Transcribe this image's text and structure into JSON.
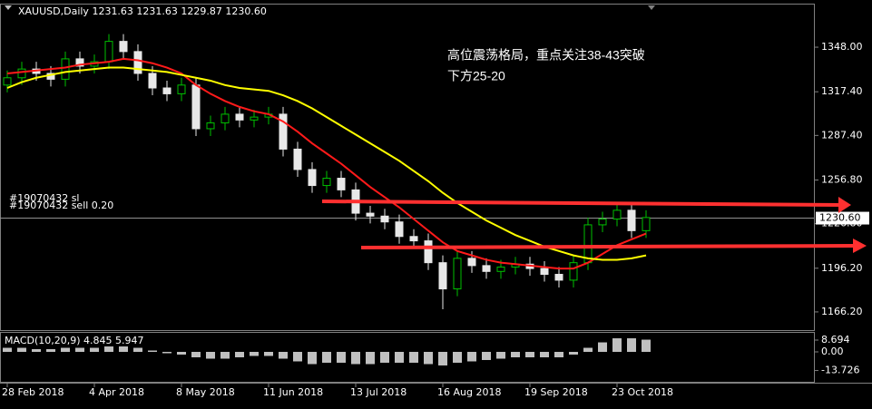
{
  "header": "XAUUSD,Daily  1231.63 1231.63 1229.87 1230.60",
  "chart_data": [
    {
      "type": "candlestick",
      "categories": [
        "28 Feb 2018",
        null,
        null,
        null,
        null,
        null,
        "4 Apr 2018",
        null,
        null,
        null,
        null,
        null,
        "8 May 2018",
        null,
        null,
        null,
        null,
        null,
        "11 Jun 2018",
        null,
        null,
        null,
        null,
        null,
        "13 Jul 2018",
        null,
        null,
        null,
        null,
        null,
        "16 Aug 2018",
        null,
        null,
        null,
        null,
        null,
        "19 Sep 2018",
        null,
        null,
        null,
        null,
        null,
        "23 Oct 2018",
        null,
        null
      ],
      "open": [
        1322,
        1327,
        1333,
        1330,
        1326,
        1340,
        1335,
        1338,
        1352,
        1345,
        1330,
        1320,
        1316,
        1322,
        1292,
        1296,
        1302,
        1298,
        1300,
        1302,
        1278,
        1264,
        1253,
        1258,
        1250,
        1234,
        1232,
        1228,
        1218,
        1215,
        1200,
        1182,
        1203,
        1198,
        1194,
        1197,
        1199,
        1196,
        1192,
        1188,
        1200,
        1226,
        1230,
        1236,
        1222
      ],
      "high": [
        1332,
        1338,
        1338,
        1335,
        1345,
        1345,
        1343,
        1357,
        1357,
        1350,
        1335,
        1325,
        1327,
        1327,
        1301,
        1307,
        1307,
        1305,
        1307,
        1307,
        1283,
        1269,
        1263,
        1263,
        1255,
        1239,
        1237,
        1233,
        1223,
        1220,
        1205,
        1208,
        1208,
        1203,
        1202,
        1204,
        1204,
        1201,
        1197,
        1205,
        1231,
        1235,
        1241,
        1241,
        1236
      ],
      "low": [
        1317,
        1322,
        1325,
        1321,
        1321,
        1330,
        1330,
        1333,
        1340,
        1325,
        1315,
        1311,
        1311,
        1287,
        1287,
        1291,
        1293,
        1293,
        1295,
        1273,
        1259,
        1248,
        1248,
        1245,
        1229,
        1227,
        1223,
        1213,
        1210,
        1195,
        1168,
        1177,
        1193,
        1189,
        1189,
        1192,
        1191,
        1187,
        1183,
        1183,
        1195,
        1221,
        1225,
        1217,
        1217
      ],
      "close": [
        1327,
        1333,
        1330,
        1326,
        1340,
        1335,
        1338,
        1352,
        1345,
        1330,
        1320,
        1316,
        1322,
        1292,
        1296,
        1302,
        1298,
        1300,
        1302,
        1278,
        1264,
        1253,
        1258,
        1250,
        1234,
        1232,
        1228,
        1218,
        1215,
        1200,
        1182,
        1203,
        1198,
        1194,
        1197,
        1199,
        1196,
        1192,
        1188,
        1200,
        1226,
        1230,
        1236,
        1222,
        1231
      ],
      "up_color": "#00c000",
      "down_color": "#e8e8e8",
      "lines": [
        {
          "color": "#ff1a1a",
          "values": [
            1330,
            1331,
            1332,
            1333,
            1334,
            1336,
            1337,
            1338,
            1340,
            1339,
            1337,
            1334,
            1330,
            1322,
            1316,
            1311,
            1307,
            1304,
            1302,
            1297,
            1290,
            1282,
            1275,
            1268,
            1260,
            1252,
            1245,
            1238,
            1230,
            1222,
            1214,
            1208,
            1205,
            1202,
            1200,
            1199,
            1198,
            1197,
            1196,
            1196,
            1200,
            1206,
            1212,
            1216,
            1220
          ]
        },
        {
          "color": "#ffff00",
          "values": [
            1320,
            1324,
            1327,
            1329,
            1331,
            1332,
            1333,
            1334,
            1334,
            1333,
            1332,
            1331,
            1329,
            1327,
            1325,
            1322,
            1320,
            1319,
            1318,
            1315,
            1311,
            1306,
            1300,
            1294,
            1288,
            1282,
            1276,
            1270,
            1263,
            1256,
            1248,
            1241,
            1235,
            1229,
            1224,
            1219,
            1215,
            1211,
            1208,
            1205,
            1203,
            1202,
            1202,
            1203,
            1205
          ]
        }
      ],
      "ylim": [
        1153.7,
        1371.7
      ],
      "yticks": [
        {
          "value": 1348,
          "label": "1348.00"
        },
        {
          "value": 1317.4,
          "label": "1317.40"
        },
        {
          "value": 1287.4,
          "label": "1287.40"
        },
        {
          "value": 1256.8,
          "label": "1256.80"
        },
        {
          "value": 1226.8,
          "label": "1226.80"
        },
        {
          "value": 1196.2,
          "label": "1196.20"
        },
        {
          "value": 1166.2,
          "label": "1166.20"
        }
      ],
      "last_price": {
        "value": 1230.6,
        "label": "1230.60"
      },
      "orders": [
        "#19070432 sl",
        "#19070432 sell 0.20"
      ],
      "annotations": [
        "高位震荡格局，重点关注38-43突破",
        "下方25-20"
      ],
      "grid": false
    },
    {
      "type": "bar",
      "title": "MACD(10,20,9) 4.845 5.947",
      "color": "#c0c0c0",
      "values": [
        3,
        3,
        2,
        2,
        3,
        3,
        3,
        4,
        4,
        3,
        1,
        -1,
        -2,
        -4,
        -5,
        -5,
        -4,
        -3,
        -3,
        -5,
        -7,
        -9,
        -8,
        -8,
        -9,
        -9,
        -8,
        -8,
        -8,
        -9,
        -10,
        -8,
        -7,
        -6,
        -5,
        -4,
        -4,
        -4,
        -4,
        -2,
        3,
        7,
        10,
        10,
        9
      ],
      "ylim": [
        -22.7,
        14.7
      ],
      "yticks": [
        8.694,
        {
          "value": 0,
          "label": "0.00"
        },
        -13.726
      ]
    }
  ]
}
